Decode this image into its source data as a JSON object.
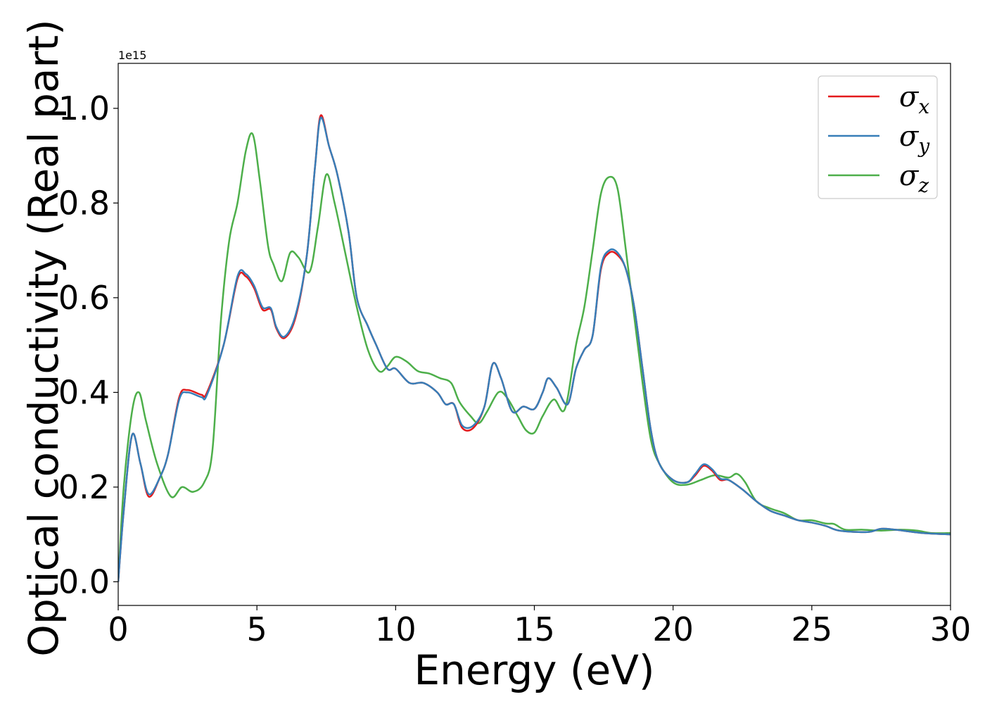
{
  "chart_data": {
    "type": "line",
    "xlabel": "Energy (eV)",
    "ylabel": "Optical conductivity (Real part)",
    "offset_text": "1e15",
    "xlim": [
      0,
      30
    ],
    "ylim": [
      -0.05,
      1.095
    ],
    "y_scale_factor": 1000000000000000.0,
    "xticks": [
      0,
      5,
      10,
      15,
      20,
      25,
      30
    ],
    "xtick_labels": [
      "0",
      "5",
      "10",
      "15",
      "20",
      "25",
      "30"
    ],
    "yticks": [
      0.0,
      0.2,
      0.4,
      0.6,
      0.8,
      1.0
    ],
    "ytick_labels": [
      "0.0",
      "0.2",
      "0.4",
      "0.6",
      "0.8",
      "1.0"
    ],
    "grid": false,
    "legend_position": "upper-right",
    "series": [
      {
        "name": "σ",
        "subscript": "x",
        "color": "#e41a1c",
        "points": [
          [
            0,
            0.0
          ],
          [
            0.2,
            0.15
          ],
          [
            0.5,
            0.31
          ],
          [
            0.8,
            0.25
          ],
          [
            1.1,
            0.18
          ],
          [
            1.5,
            0.22
          ],
          [
            1.8,
            0.27
          ],
          [
            2.2,
            0.39
          ],
          [
            2.5,
            0.405
          ],
          [
            3.0,
            0.395
          ],
          [
            3.2,
            0.4
          ],
          [
            3.8,
            0.5
          ],
          [
            4.3,
            0.64
          ],
          [
            4.6,
            0.645
          ],
          [
            4.9,
            0.62
          ],
          [
            5.2,
            0.575
          ],
          [
            5.5,
            0.575
          ],
          [
            5.7,
            0.535
          ],
          [
            6.0,
            0.515
          ],
          [
            6.4,
            0.56
          ],
          [
            6.8,
            0.69
          ],
          [
            7.1,
            0.88
          ],
          [
            7.3,
            0.985
          ],
          [
            7.6,
            0.92
          ],
          [
            7.9,
            0.86
          ],
          [
            8.3,
            0.74
          ],
          [
            8.6,
            0.6
          ],
          [
            9.0,
            0.54
          ],
          [
            9.3,
            0.5
          ],
          [
            9.7,
            0.45
          ],
          [
            10.0,
            0.45
          ],
          [
            10.5,
            0.42
          ],
          [
            11.0,
            0.42
          ],
          [
            11.5,
            0.4
          ],
          [
            11.8,
            0.375
          ],
          [
            12.1,
            0.375
          ],
          [
            12.4,
            0.325
          ],
          [
            12.8,
            0.325
          ],
          [
            13.2,
            0.37
          ],
          [
            13.5,
            0.46
          ],
          [
            13.8,
            0.43
          ],
          [
            14.2,
            0.36
          ],
          [
            14.6,
            0.37
          ],
          [
            15.0,
            0.365
          ],
          [
            15.3,
            0.4
          ],
          [
            15.5,
            0.43
          ],
          [
            15.8,
            0.41
          ],
          [
            16.2,
            0.375
          ],
          [
            16.5,
            0.45
          ],
          [
            16.8,
            0.49
          ],
          [
            17.1,
            0.52
          ],
          [
            17.4,
            0.66
          ],
          [
            17.7,
            0.695
          ],
          [
            18.0,
            0.69
          ],
          [
            18.3,
            0.66
          ],
          [
            18.6,
            0.58
          ],
          [
            18.9,
            0.45
          ],
          [
            19.2,
            0.32
          ],
          [
            19.5,
            0.25
          ],
          [
            20.0,
            0.215
          ],
          [
            20.5,
            0.21
          ],
          [
            20.8,
            0.225
          ],
          [
            21.1,
            0.245
          ],
          [
            21.4,
            0.235
          ],
          [
            21.7,
            0.215
          ],
          [
            22.0,
            0.215
          ],
          [
            22.5,
            0.195
          ],
          [
            23.0,
            0.17
          ],
          [
            23.5,
            0.15
          ],
          [
            24.0,
            0.14
          ],
          [
            24.5,
            0.13
          ],
          [
            25.0,
            0.125
          ],
          [
            25.5,
            0.118
          ],
          [
            26.0,
            0.108
          ],
          [
            27.0,
            0.105
          ],
          [
            27.5,
            0.112
          ],
          [
            28.0,
            0.11
          ],
          [
            29.0,
            0.103
          ],
          [
            30.0,
            0.1
          ]
        ]
      },
      {
        "name": "σ",
        "subscript": "y",
        "color": "#377eb8",
        "points": [
          [
            0,
            0.0
          ],
          [
            0.2,
            0.15
          ],
          [
            0.5,
            0.31
          ],
          [
            0.8,
            0.25
          ],
          [
            1.1,
            0.185
          ],
          [
            1.5,
            0.22
          ],
          [
            1.8,
            0.27
          ],
          [
            2.2,
            0.385
          ],
          [
            2.5,
            0.4
          ],
          [
            3.0,
            0.39
          ],
          [
            3.2,
            0.395
          ],
          [
            3.8,
            0.5
          ],
          [
            4.3,
            0.645
          ],
          [
            4.6,
            0.65
          ],
          [
            4.9,
            0.625
          ],
          [
            5.2,
            0.58
          ],
          [
            5.5,
            0.578
          ],
          [
            5.7,
            0.538
          ],
          [
            6.0,
            0.518
          ],
          [
            6.4,
            0.565
          ],
          [
            6.8,
            0.69
          ],
          [
            7.1,
            0.88
          ],
          [
            7.3,
            0.98
          ],
          [
            7.6,
            0.92
          ],
          [
            7.9,
            0.86
          ],
          [
            8.3,
            0.74
          ],
          [
            8.6,
            0.6
          ],
          [
            9.0,
            0.54
          ],
          [
            9.3,
            0.5
          ],
          [
            9.7,
            0.45
          ],
          [
            10.0,
            0.45
          ],
          [
            10.5,
            0.42
          ],
          [
            11.0,
            0.42
          ],
          [
            11.5,
            0.4
          ],
          [
            11.8,
            0.375
          ],
          [
            12.1,
            0.375
          ],
          [
            12.4,
            0.33
          ],
          [
            12.8,
            0.33
          ],
          [
            13.2,
            0.37
          ],
          [
            13.5,
            0.46
          ],
          [
            13.8,
            0.43
          ],
          [
            14.2,
            0.36
          ],
          [
            14.6,
            0.37
          ],
          [
            15.0,
            0.365
          ],
          [
            15.3,
            0.4
          ],
          [
            15.5,
            0.43
          ],
          [
            15.8,
            0.41
          ],
          [
            16.2,
            0.375
          ],
          [
            16.5,
            0.45
          ],
          [
            16.8,
            0.49
          ],
          [
            17.1,
            0.52
          ],
          [
            17.4,
            0.665
          ],
          [
            17.7,
            0.7
          ],
          [
            18.0,
            0.695
          ],
          [
            18.3,
            0.66
          ],
          [
            18.6,
            0.58
          ],
          [
            18.9,
            0.45
          ],
          [
            19.2,
            0.32
          ],
          [
            19.5,
            0.25
          ],
          [
            20.0,
            0.215
          ],
          [
            20.5,
            0.21
          ],
          [
            20.8,
            0.228
          ],
          [
            21.1,
            0.248
          ],
          [
            21.4,
            0.238
          ],
          [
            21.7,
            0.218
          ],
          [
            22.0,
            0.215
          ],
          [
            22.5,
            0.195
          ],
          [
            23.0,
            0.17
          ],
          [
            23.5,
            0.15
          ],
          [
            24.0,
            0.14
          ],
          [
            24.5,
            0.13
          ],
          [
            25.0,
            0.125
          ],
          [
            25.5,
            0.118
          ],
          [
            26.0,
            0.108
          ],
          [
            27.0,
            0.105
          ],
          [
            27.5,
            0.112
          ],
          [
            28.0,
            0.11
          ],
          [
            29.0,
            0.103
          ],
          [
            30.0,
            0.1
          ]
        ]
      },
      {
        "name": "σ",
        "subscript": "z",
        "color": "#4daf4a",
        "points": [
          [
            0,
            0.0
          ],
          [
            0.2,
            0.2
          ],
          [
            0.5,
            0.36
          ],
          [
            0.75,
            0.4
          ],
          [
            1.0,
            0.34
          ],
          [
            1.4,
            0.25
          ],
          [
            1.9,
            0.18
          ],
          [
            2.3,
            0.2
          ],
          [
            2.7,
            0.19
          ],
          [
            3.1,
            0.21
          ],
          [
            3.4,
            0.28
          ],
          [
            3.7,
            0.55
          ],
          [
            4.0,
            0.72
          ],
          [
            4.3,
            0.8
          ],
          [
            4.6,
            0.91
          ],
          [
            4.85,
            0.945
          ],
          [
            5.1,
            0.85
          ],
          [
            5.4,
            0.71
          ],
          [
            5.6,
            0.67
          ],
          [
            5.9,
            0.635
          ],
          [
            6.2,
            0.695
          ],
          [
            6.5,
            0.685
          ],
          [
            6.9,
            0.655
          ],
          [
            7.2,
            0.75
          ],
          [
            7.5,
            0.86
          ],
          [
            7.8,
            0.8
          ],
          [
            8.2,
            0.69
          ],
          [
            8.6,
            0.58
          ],
          [
            9.0,
            0.49
          ],
          [
            9.4,
            0.445
          ],
          [
            9.7,
            0.455
          ],
          [
            10.0,
            0.475
          ],
          [
            10.4,
            0.465
          ],
          [
            10.8,
            0.445
          ],
          [
            11.2,
            0.44
          ],
          [
            11.6,
            0.43
          ],
          [
            12.0,
            0.42
          ],
          [
            12.3,
            0.38
          ],
          [
            12.7,
            0.35
          ],
          [
            13.0,
            0.335
          ],
          [
            13.3,
            0.36
          ],
          [
            13.7,
            0.4
          ],
          [
            14.0,
            0.39
          ],
          [
            14.4,
            0.35
          ],
          [
            14.7,
            0.32
          ],
          [
            15.0,
            0.315
          ],
          [
            15.3,
            0.35
          ],
          [
            15.7,
            0.385
          ],
          [
            16.1,
            0.365
          ],
          [
            16.5,
            0.5
          ],
          [
            16.8,
            0.58
          ],
          [
            17.1,
            0.7
          ],
          [
            17.4,
            0.82
          ],
          [
            17.7,
            0.855
          ],
          [
            18.0,
            0.83
          ],
          [
            18.3,
            0.7
          ],
          [
            18.6,
            0.56
          ],
          [
            18.9,
            0.42
          ],
          [
            19.2,
            0.3
          ],
          [
            19.5,
            0.25
          ],
          [
            20.0,
            0.21
          ],
          [
            20.5,
            0.205
          ],
          [
            21.0,
            0.215
          ],
          [
            21.5,
            0.225
          ],
          [
            22.0,
            0.22
          ],
          [
            22.3,
            0.228
          ],
          [
            22.6,
            0.21
          ],
          [
            23.0,
            0.17
          ],
          [
            23.5,
            0.155
          ],
          [
            24.0,
            0.145
          ],
          [
            24.5,
            0.13
          ],
          [
            25.0,
            0.13
          ],
          [
            25.5,
            0.123
          ],
          [
            25.8,
            0.122
          ],
          [
            26.2,
            0.11
          ],
          [
            26.8,
            0.11
          ],
          [
            27.5,
            0.108
          ],
          [
            28.2,
            0.11
          ],
          [
            28.8,
            0.108
          ],
          [
            29.3,
            0.103
          ],
          [
            30.0,
            0.103
          ]
        ]
      }
    ]
  }
}
